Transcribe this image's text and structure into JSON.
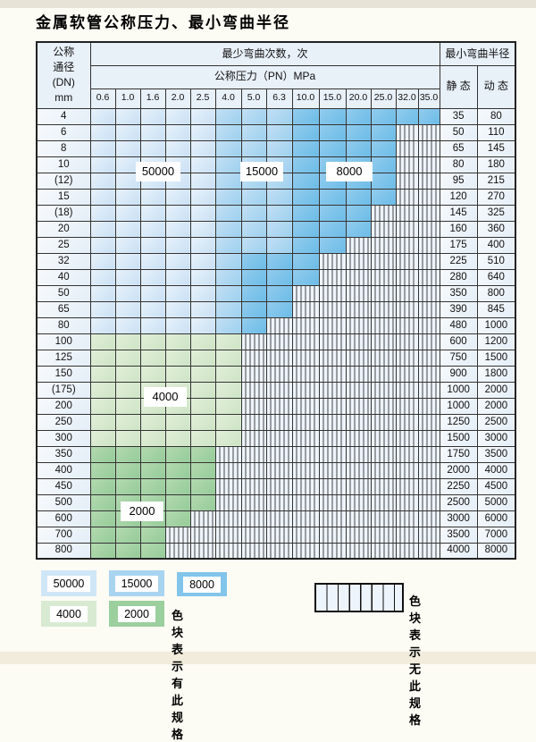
{
  "page": {
    "title": "金属软管公称压力、最小弯曲半径"
  },
  "table": {
    "corner": {
      "lines": [
        "公称",
        "通径",
        "(DN)",
        "mm"
      ]
    },
    "cycles_header": "最少弯曲次数，次",
    "pressure_header": "公称压力（PN）MPa",
    "radius_header": "最小弯曲半径",
    "static_header": "静 态",
    "dynamic_header": "动 态",
    "pressure_columns": [
      "0.6",
      "1.0",
      "1.6",
      "2.0",
      "2.5",
      "4.0",
      "5.0",
      "6.3",
      "10.0",
      "15.0",
      "20.0",
      "25.0",
      "32.0",
      "35.0"
    ],
    "zone_labels": [
      "50000",
      "15000",
      "8000",
      "4000",
      "2000"
    ],
    "rows": [
      {
        "dn": "4",
        "static": "35",
        "dynamic": "80",
        "zones": [
          [
            "50000",
            5
          ],
          [
            "15000",
            3
          ],
          [
            "8000",
            6
          ]
        ]
      },
      {
        "dn": "6",
        "static": "50",
        "dynamic": "110",
        "zones": [
          [
            "50000",
            5
          ],
          [
            "15000",
            3
          ],
          [
            "8000",
            4
          ]
        ]
      },
      {
        "dn": "8",
        "static": "65",
        "dynamic": "145",
        "zones": [
          [
            "50000",
            5
          ],
          [
            "15000",
            3
          ],
          [
            "8000",
            4
          ]
        ]
      },
      {
        "dn": "10",
        "static": "80",
        "dynamic": "180",
        "zones": [
          [
            "50000",
            5
          ],
          [
            "15000",
            3
          ],
          [
            "8000",
            4
          ]
        ]
      },
      {
        "dn": "(12)",
        "static": "95",
        "dynamic": "215",
        "zones": [
          [
            "50000",
            5
          ],
          [
            "15000",
            3
          ],
          [
            "8000",
            4
          ]
        ]
      },
      {
        "dn": "15",
        "static": "120",
        "dynamic": "270",
        "zones": [
          [
            "50000",
            5
          ],
          [
            "15000",
            3
          ],
          [
            "8000",
            4
          ]
        ]
      },
      {
        "dn": "(18)",
        "static": "145",
        "dynamic": "325",
        "zones": [
          [
            "50000",
            5
          ],
          [
            "15000",
            3
          ],
          [
            "8000",
            3
          ]
        ]
      },
      {
        "dn": "20",
        "static": "160",
        "dynamic": "360",
        "zones": [
          [
            "50000",
            5
          ],
          [
            "15000",
            3
          ],
          [
            "8000",
            3
          ]
        ]
      },
      {
        "dn": "25",
        "static": "175",
        "dynamic": "400",
        "zones": [
          [
            "50000",
            5
          ],
          [
            "15000",
            3
          ],
          [
            "8000",
            2
          ]
        ]
      },
      {
        "dn": "32",
        "static": "225",
        "dynamic": "510",
        "zones": [
          [
            "50000",
            5
          ],
          [
            "15000",
            1
          ],
          [
            "8000",
            3
          ]
        ]
      },
      {
        "dn": "40",
        "static": "280",
        "dynamic": "640",
        "zones": [
          [
            "50000",
            5
          ],
          [
            "15000",
            1
          ],
          [
            "8000",
            3
          ]
        ]
      },
      {
        "dn": "50",
        "static": "350",
        "dynamic": "800",
        "zones": [
          [
            "50000",
            5
          ],
          [
            "15000",
            1
          ],
          [
            "8000",
            2
          ]
        ]
      },
      {
        "dn": "65",
        "static": "390",
        "dynamic": "845",
        "zones": [
          [
            "50000",
            5
          ],
          [
            "15000",
            1
          ],
          [
            "8000",
            2
          ]
        ]
      },
      {
        "dn": "80",
        "static": "480",
        "dynamic": "1000",
        "zones": [
          [
            "50000",
            5
          ],
          [
            "15000",
            1
          ],
          [
            "8000",
            1
          ]
        ]
      },
      {
        "dn": "100",
        "static": "600",
        "dynamic": "1200",
        "zones": [
          [
            "4000",
            6
          ]
        ]
      },
      {
        "dn": "125",
        "static": "750",
        "dynamic": "1500",
        "zones": [
          [
            "4000",
            6
          ]
        ]
      },
      {
        "dn": "150",
        "static": "900",
        "dynamic": "1800",
        "zones": [
          [
            "4000",
            6
          ]
        ]
      },
      {
        "dn": "(175)",
        "static": "1000",
        "dynamic": "2000",
        "zones": [
          [
            "4000",
            6
          ]
        ]
      },
      {
        "dn": "200",
        "static": "1000",
        "dynamic": "2000",
        "zones": [
          [
            "4000",
            6
          ]
        ]
      },
      {
        "dn": "250",
        "static": "1250",
        "dynamic": "2500",
        "zones": [
          [
            "4000",
            6
          ]
        ]
      },
      {
        "dn": "300",
        "static": "1500",
        "dynamic": "3000",
        "zones": [
          [
            "4000",
            6
          ]
        ]
      },
      {
        "dn": "350",
        "static": "1750",
        "dynamic": "3500",
        "zones": [
          [
            "2000",
            5
          ]
        ]
      },
      {
        "dn": "400",
        "static": "2000",
        "dynamic": "4000",
        "zones": [
          [
            "2000",
            5
          ]
        ]
      },
      {
        "dn": "450",
        "static": "2250",
        "dynamic": "4500",
        "zones": [
          [
            "2000",
            5
          ]
        ]
      },
      {
        "dn": "500",
        "static": "2500",
        "dynamic": "5000",
        "zones": [
          [
            "2000",
            5
          ]
        ]
      },
      {
        "dn": "600",
        "static": "3000",
        "dynamic": "6000",
        "zones": [
          [
            "2000",
            4
          ]
        ]
      },
      {
        "dn": "700",
        "static": "3500",
        "dynamic": "7000",
        "zones": [
          [
            "2000",
            3
          ]
        ]
      },
      {
        "dn": "800",
        "static": "4000",
        "dynamic": "8000",
        "zones": [
          [
            "2000",
            3
          ]
        ]
      }
    ]
  },
  "legend": {
    "swatches": [
      {
        "value": "50000"
      },
      {
        "value": "15000"
      },
      {
        "value": "8000"
      },
      {
        "value": "4000"
      },
      {
        "value": "2000"
      }
    ],
    "has_spec_text": "色块表示有此规格",
    "no_spec_text": "色块表示无此规格"
  },
  "colors": {
    "spec_50000": "#cfe6f7",
    "spec_15000": "#a9d4f0",
    "spec_8000": "#82c4ea",
    "spec_4000": "#d8ebd2",
    "spec_2000": "#9ccf9e",
    "no_spec_bg": "#edf4fb",
    "header_bg": "#e8f0f8",
    "border": "#333333"
  }
}
